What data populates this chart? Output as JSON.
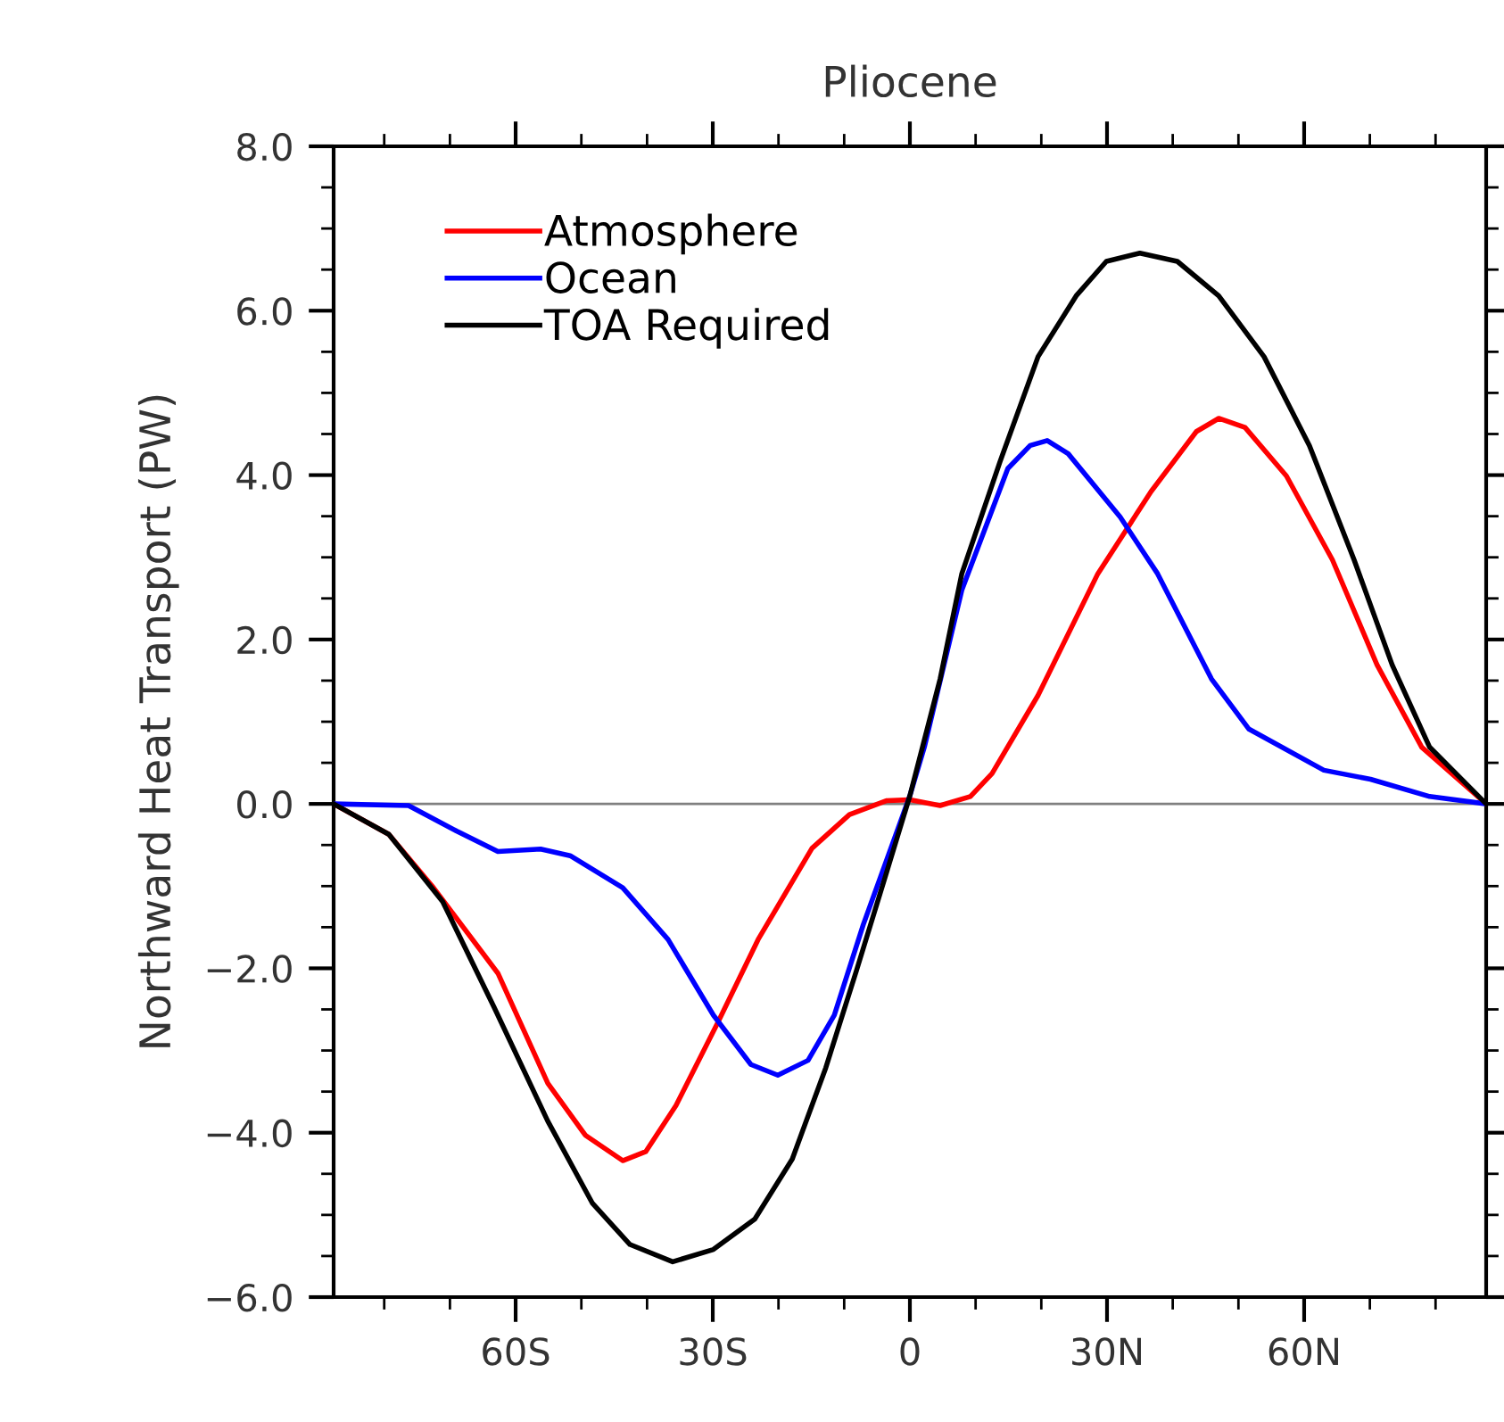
{
  "chart_data": {
    "type": "line",
    "title": "Pliocene",
    "ylabel": "Northward Heat Transport (PW)",
    "xlim": [
      -87.7,
      87.7
    ],
    "xticks": [
      {
        "value": -60,
        "label": "60S"
      },
      {
        "value": -30,
        "label": "30S"
      },
      0,
      {
        "value": 30,
        "label": "30N"
      },
      {
        "value": 60,
        "label": "60N"
      }
    ],
    "ylim": [
      -6.0,
      8.0
    ],
    "yticks": [
      {
        "value": -6,
        "label": "−6.0"
      },
      {
        "value": -4,
        "label": "−4.0"
      },
      {
        "value": -2,
        "label": "−2.0"
      },
      {
        "value": 0,
        "label": "0.0"
      },
      {
        "value": 2,
        "label": "2.0"
      },
      {
        "value": 4,
        "label": "4.0"
      },
      {
        "value": 6,
        "label": "6.0"
      },
      {
        "value": 8,
        "label": "8.0"
      }
    ],
    "legend": "top left",
    "grid": false,
    "marker": "none",
    "line_style": "solid",
    "ref_lines": [
      {
        "axis": "y",
        "value": 0,
        "color": "#808080"
      }
    ],
    "series": [
      {
        "name": "Atmosphere",
        "color": "#ff0000",
        "x": [
          -87.7,
          -79.3,
          -72.5,
          -62.7,
          -55.1,
          -49.4,
          -43.7,
          -40.2,
          -35.6,
          -29.3,
          -23.1,
          -14.9,
          -9.2,
          -3.5,
          0,
          4.6,
          9.2,
          12.5,
          19.5,
          28.6,
          36.7,
          43.6,
          47.0,
          51.0,
          57.3,
          64.3,
          71.1,
          77.9,
          87.7
        ],
        "values": [
          0,
          -0.37,
          -1.02,
          -2.06,
          -3.4,
          -4.03,
          -4.34,
          -4.23,
          -3.67,
          -2.67,
          -1.65,
          -0.54,
          -0.13,
          0.04,
          0.05,
          -0.02,
          0.09,
          0.37,
          1.32,
          2.8,
          3.8,
          4.53,
          4.69,
          4.58,
          3.99,
          2.97,
          1.69,
          0.69,
          0
        ]
      },
      {
        "name": "Ocean",
        "color": "#0000ff",
        "x": [
          -87.7,
          -76.3,
          -69.0,
          -62.7,
          -56.2,
          -51.7,
          -43.7,
          -36.8,
          -29.9,
          -24.2,
          -20.1,
          -15.5,
          -11.5,
          -7.1,
          0,
          2.2,
          7.9,
          14.9,
          18.3,
          20.9,
          24.1,
          32.0,
          37.7,
          45.9,
          51.6,
          63.0,
          70.1,
          79.1,
          87.7
        ],
        "values": [
          0,
          -0.02,
          -0.33,
          -0.58,
          -0.55,
          -0.63,
          -1.02,
          -1.65,
          -2.57,
          -3.17,
          -3.3,
          -3.12,
          -2.57,
          -1.47,
          0.1,
          0.69,
          2.6,
          4.08,
          4.36,
          4.42,
          4.26,
          3.49,
          2.8,
          1.52,
          0.91,
          0.41,
          0.3,
          0.09,
          0
        ]
      },
      {
        "name": "TOA Required",
        "color": "#000000",
        "x": [
          -87.7,
          -79.3,
          -71.1,
          -63.3,
          -55.1,
          -48.3,
          -42.6,
          -36.1,
          -29.9,
          -23.6,
          -17.9,
          -12.8,
          -8.1,
          -3.5,
          0,
          4.6,
          7.9,
          13.7,
          19.5,
          25.3,
          29.9,
          35.0,
          40.7,
          47.0,
          53.9,
          60.8,
          67.6,
          73.4,
          79.1,
          87.7
        ],
        "values": [
          0,
          -0.37,
          -1.19,
          -2.47,
          -3.86,
          -4.86,
          -5.36,
          -5.57,
          -5.42,
          -5.05,
          -4.32,
          -3.21,
          -2.02,
          -0.82,
          0.1,
          1.52,
          2.8,
          4.16,
          5.44,
          6.18,
          6.6,
          6.7,
          6.6,
          6.18,
          5.44,
          4.36,
          2.97,
          1.69,
          0.69,
          0
        ]
      }
    ]
  }
}
